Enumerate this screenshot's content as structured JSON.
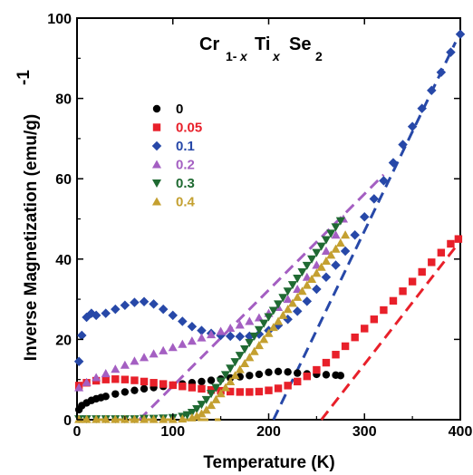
{
  "chart_data": {
    "type": "scatter",
    "xlabel": "Temperature (K)",
    "ylabel": "Inverse Magnetization (emu/g)",
    "ylabel_sup": "-1",
    "xlim": [
      0,
      400
    ],
    "ylim": [
      0,
      100
    ],
    "x_ticks": [
      "0",
      "100",
      "200",
      "300",
      "400"
    ],
    "y_ticks": [
      "0",
      "20",
      "40",
      "60",
      "80",
      "100"
    ],
    "grid": false,
    "legend_position": "upper-left",
    "formula": {
      "el1": "Cr",
      "sub1": "1-",
      "subvar1": "x",
      "el2": "Ti",
      "subvar2": "x",
      "el3": "Se",
      "sub3": "2"
    },
    "series": [
      {
        "name": "0",
        "color": "#000000",
        "marker": "circle",
        "x": [
          2,
          5,
          10,
          15,
          20,
          25,
          30,
          40,
          50,
          60,
          70,
          80,
          90,
          100,
          110,
          120,
          130,
          140,
          150,
          160,
          170,
          180,
          190,
          200,
          210,
          220,
          230,
          240,
          250,
          260,
          270,
          275
        ],
        "y": [
          2.5,
          3.5,
          4.2,
          4.8,
          5.2,
          5.5,
          5.8,
          6.4,
          6.9,
          7.3,
          7.7,
          8.0,
          8.3,
          8.6,
          8.9,
          9.2,
          9.5,
          9.8,
          10.1,
          10.4,
          10.7,
          11.0,
          11.3,
          11.8,
          12.0,
          11.9,
          11.6,
          11.4,
          11.3,
          11.2,
          11.1,
          11.0
        ]
      },
      {
        "name": "0.05",
        "color": "#e8202a",
        "marker": "square",
        "x": [
          2,
          10,
          20,
          30,
          40,
          50,
          60,
          70,
          80,
          90,
          100,
          110,
          120,
          130,
          140,
          150,
          160,
          170,
          180,
          190,
          200,
          210,
          220,
          230,
          240,
          250,
          260,
          270,
          280,
          290,
          300,
          310,
          320,
          330,
          340,
          350,
          360,
          370,
          380,
          390,
          398
        ],
        "y": [
          8.5,
          9.2,
          9.7,
          10.0,
          10.1,
          10.0,
          9.8,
          9.5,
          9.2,
          8.9,
          8.6,
          8.3,
          8.0,
          7.7,
          7.4,
          7.2,
          7.0,
          6.9,
          6.9,
          7.0,
          7.3,
          7.8,
          8.5,
          9.5,
          10.8,
          12.4,
          14.2,
          16.2,
          18.3,
          20.5,
          22.7,
          25.0,
          27.3,
          29.6,
          32.0,
          34.4,
          36.8,
          39.2,
          41.6,
          43.8,
          45.0
        ]
      },
      {
        "name": "0.1",
        "color": "#2748a8",
        "marker": "diamond",
        "x": [
          2,
          5,
          10,
          15,
          20,
          30,
          40,
          50,
          60,
          70,
          80,
          90,
          100,
          110,
          120,
          130,
          140,
          150,
          160,
          170,
          180,
          190,
          200,
          210,
          220,
          230,
          240,
          250,
          260,
          270,
          280,
          290,
          300,
          310,
          320,
          330,
          340,
          350,
          360,
          370,
          380,
          390,
          400
        ],
        "y": [
          14.5,
          21.0,
          25.5,
          26.5,
          26.0,
          26.5,
          27.5,
          28.5,
          29.2,
          29.4,
          28.8,
          27.5,
          26.0,
          24.5,
          23.2,
          22.2,
          21.5,
          21.0,
          20.8,
          20.7,
          20.8,
          21.3,
          22.2,
          23.5,
          25.0,
          27.0,
          29.5,
          32.5,
          35.5,
          38.5,
          42.0,
          46.0,
          50.5,
          55.0,
          59.5,
          64.0,
          68.5,
          73.0,
          77.5,
          82.0,
          86.5,
          91.5,
          96.0
        ]
      },
      {
        "name": "0.2",
        "color": "#a45fc2",
        "marker": "triangle-up",
        "x": [
          2,
          10,
          20,
          30,
          40,
          50,
          60,
          70,
          80,
          90,
          100,
          110,
          120,
          130,
          140,
          150,
          160,
          170,
          180,
          190,
          200,
          210,
          220,
          230,
          240,
          250,
          260,
          270,
          278
        ],
        "y": [
          8.0,
          9.3,
          10.5,
          11.5,
          12.6,
          13.6,
          14.6,
          15.5,
          16.4,
          17.2,
          18.0,
          18.8,
          19.6,
          20.4,
          21.2,
          22.0,
          22.8,
          23.6,
          24.5,
          25.4,
          26.5,
          28.0,
          30.0,
          32.5,
          35.5,
          38.5,
          42.0,
          46.0,
          50.0
        ]
      },
      {
        "name": "0.3",
        "color": "#1f6a32",
        "marker": "triangle-down",
        "x": [
          2,
          10,
          20,
          30,
          40,
          50,
          60,
          70,
          80,
          90,
          100,
          110,
          115,
          120,
          125,
          130,
          135,
          140,
          145,
          150,
          155,
          160,
          165,
          170,
          175,
          180,
          185,
          190,
          195,
          200,
          205,
          210,
          215,
          220,
          225,
          230,
          235,
          240,
          245,
          250,
          255,
          260,
          265,
          270,
          275
        ],
        "y": [
          0.2,
          0.2,
          0.2,
          0.2,
          0.2,
          0.2,
          0.2,
          0.3,
          0.3,
          0.4,
          0.5,
          0.8,
          1.2,
          1.8,
          2.7,
          3.8,
          5.0,
          6.5,
          8.0,
          9.6,
          11.2,
          12.8,
          14.4,
          16.0,
          17.6,
          19.2,
          20.8,
          22.4,
          24.0,
          25.6,
          27.2,
          28.8,
          30.4,
          32.0,
          33.6,
          35.2,
          36.8,
          38.4,
          40.0,
          41.6,
          43.2,
          44.8,
          46.4,
          48.0,
          49.5
        ]
      },
      {
        "name": "0.4",
        "color": "#c4a030",
        "marker": "triangle-up",
        "x": [
          2,
          10,
          20,
          30,
          40,
          50,
          60,
          70,
          80,
          90,
          100,
          110,
          120,
          125,
          130,
          135,
          140,
          145,
          150,
          155,
          160,
          165,
          170,
          175,
          180,
          185,
          190,
          195,
          200,
          205,
          210,
          215,
          220,
          225,
          230,
          235,
          240,
          245,
          250,
          255,
          260,
          265,
          270,
          275,
          280
        ],
        "y": [
          0.1,
          0.1,
          0.1,
          0.1,
          0.1,
          0.1,
          0.1,
          0.1,
          0.1,
          0.1,
          0.1,
          0.2,
          0.5,
          0.9,
          1.5,
          2.4,
          3.6,
          5.0,
          6.5,
          8.0,
          9.5,
          11.0,
          12.5,
          14.0,
          15.5,
          17.0,
          18.5,
          20.0,
          21.5,
          23.0,
          24.5,
          26.0,
          27.5,
          29.0,
          30.5,
          32.0,
          33.5,
          35.0,
          36.5,
          38.0,
          39.5,
          41.0,
          42.5,
          44.0,
          46.0
        ]
      }
    ],
    "fit_lines": [
      {
        "color": "#e8202a",
        "dashed": true,
        "x": [
          255,
          395
        ],
        "y": [
          0,
          43
        ]
      },
      {
        "color": "#2748a8",
        "dashed": true,
        "x": [
          205,
          395
        ],
        "y": [
          0,
          94
        ]
      },
      {
        "color": "#a45fc2",
        "dashed": true,
        "x": [
          65,
          320
        ],
        "y": [
          0,
          61
        ]
      },
      {
        "color": "#1f6a32",
        "dashed": true,
        "x": [
          0,
          150
        ],
        "y": [
          0,
          0
        ]
      },
      {
        "color": "#c4a030",
        "dashed": true,
        "x": [
          0,
          150
        ],
        "y": [
          0,
          0
        ]
      }
    ]
  }
}
